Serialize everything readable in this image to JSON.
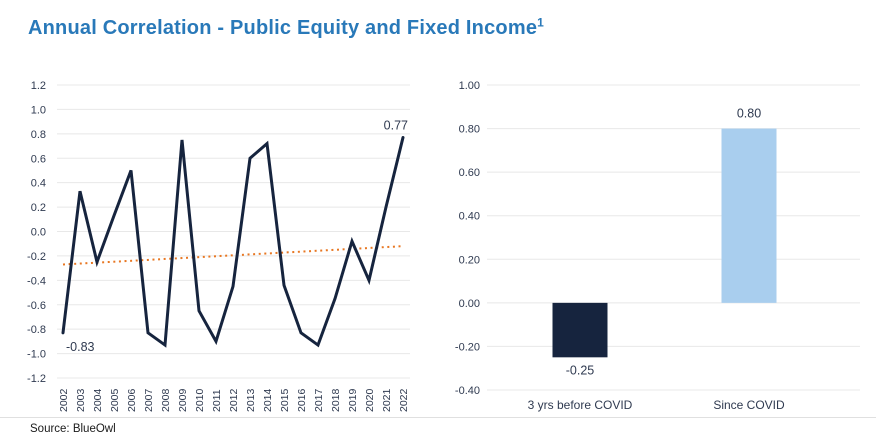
{
  "page": {
    "title": "Annual Correlation - Public Equity and Fixed Income",
    "title_superscript": "1",
    "source_label": "Source: BlueOwl"
  },
  "colors": {
    "title_blue": "#2979B9",
    "line_navy": "#16243E",
    "trend_orange": "#E87722",
    "bar_dark": "#16243E",
    "bar_light": "#A9CEEE",
    "gridline": "#E8E8E8",
    "axis_text": "#2F3A50",
    "annotation_text": "#2F3A50"
  },
  "chart_data": [
    {
      "type": "line",
      "title": "Annual Correlation - Public Equity and Fixed Income",
      "x": [
        2002,
        2003,
        2004,
        2005,
        2006,
        2007,
        2008,
        2009,
        2010,
        2011,
        2012,
        2013,
        2014,
        2015,
        2016,
        2017,
        2018,
        2019,
        2020,
        2021,
        2022
      ],
      "series": [
        {
          "name": "Annual correlation",
          "values": [
            -0.83,
            0.33,
            -0.25,
            0.13,
            0.5,
            -0.83,
            -0.93,
            0.75,
            -0.65,
            -0.9,
            -0.45,
            0.6,
            0.72,
            -0.44,
            -0.83,
            -0.93,
            -0.55,
            -0.08,
            -0.4,
            0.2,
            0.77
          ]
        }
      ],
      "trendline": {
        "style": "dotted",
        "start_value": -0.27,
        "end_value": -0.12
      },
      "ylim": [
        -1.2,
        1.2
      ],
      "yticks": [
        1.2,
        1.0,
        0.8,
        0.6,
        0.4,
        0.2,
        0.0,
        -0.2,
        -0.4,
        -0.6,
        -0.8,
        -1.0,
        -1.2
      ],
      "ytick_labels": [
        "1.2",
        "1.0",
        "0.8",
        "0.6",
        "0.4",
        "0.2",
        "0.0",
        "-0.2",
        "-0.4",
        "-0.6",
        "-0.8",
        "-1.0",
        "-1.2"
      ],
      "annotations": [
        {
          "x": 2002,
          "label": "-0.83",
          "position": "below-right"
        },
        {
          "x": 2022,
          "label": "0.77",
          "position": "above-left"
        }
      ],
      "grid": true,
      "legend": false
    },
    {
      "type": "bar",
      "categories": [
        "3 yrs before COVID",
        "Since COVID"
      ],
      "values": [
        -0.25,
        0.8
      ],
      "data_labels": [
        "-0.25",
        "0.80"
      ],
      "bar_colors": [
        "#16243E",
        "#A9CEEE"
      ],
      "ylim": [
        -0.4,
        1.0
      ],
      "yticks": [
        1.0,
        0.8,
        0.6,
        0.4,
        0.2,
        0.0,
        -0.2,
        -0.4
      ],
      "ytick_labels": [
        "1.00",
        "0.80",
        "0.60",
        "0.40",
        "0.20",
        "0.00",
        "-0.20",
        "-0.40"
      ],
      "grid": true,
      "legend": false
    }
  ]
}
